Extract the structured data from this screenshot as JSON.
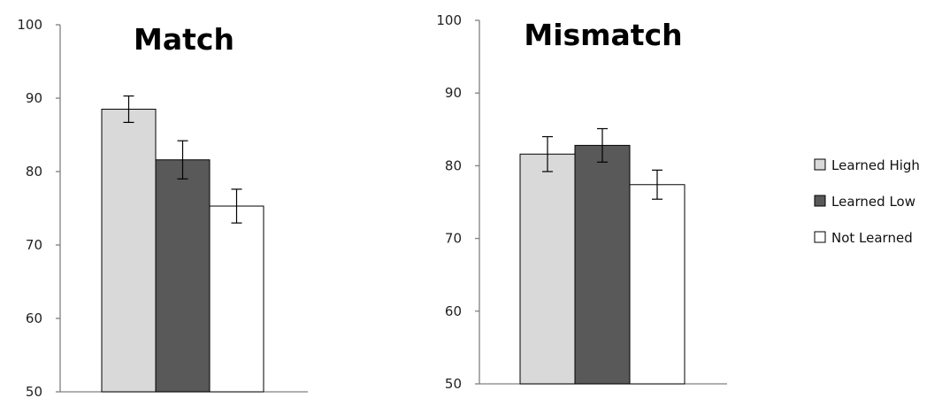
{
  "chart_data": [
    {
      "type": "bar",
      "title": "Match",
      "ylim": [
        50,
        100
      ],
      "yticks": [
        "50",
        "60",
        "70",
        "80",
        "90",
        "100"
      ],
      "grid": false,
      "categories": [
        ""
      ],
      "series": [
        {
          "name": "Learned High",
          "values": [
            88.5
          ],
          "error": [
            1.8
          ]
        },
        {
          "name": "Learned Low",
          "values": [
            81.6
          ],
          "error": [
            2.6
          ]
        },
        {
          "name": "Not Learned",
          "values": [
            75.3
          ],
          "error": [
            2.3
          ]
        }
      ]
    },
    {
      "type": "bar",
      "title": "Mismatch",
      "ylim": [
        50,
        100
      ],
      "yticks": [
        "50",
        "60",
        "70",
        "80",
        "90",
        "100"
      ],
      "grid": false,
      "categories": [
        ""
      ],
      "series": [
        {
          "name": "Learned High",
          "values": [
            81.6
          ],
          "error": [
            2.4
          ]
        },
        {
          "name": "Learned Low",
          "values": [
            82.8
          ],
          "error": [
            2.3
          ]
        },
        {
          "name": "Not Learned",
          "values": [
            77.4
          ],
          "error": [
            2.0
          ]
        }
      ]
    }
  ],
  "legend": {
    "placement": "right",
    "entries": [
      "Learned High",
      "Learned Low",
      "Not Learned"
    ]
  },
  "colors": {
    "Learned High": "#d9d9d9",
    "Learned Low": "#595959",
    "Not Learned": "#ffffff",
    "outline": "#000000",
    "axis": "#808080"
  }
}
